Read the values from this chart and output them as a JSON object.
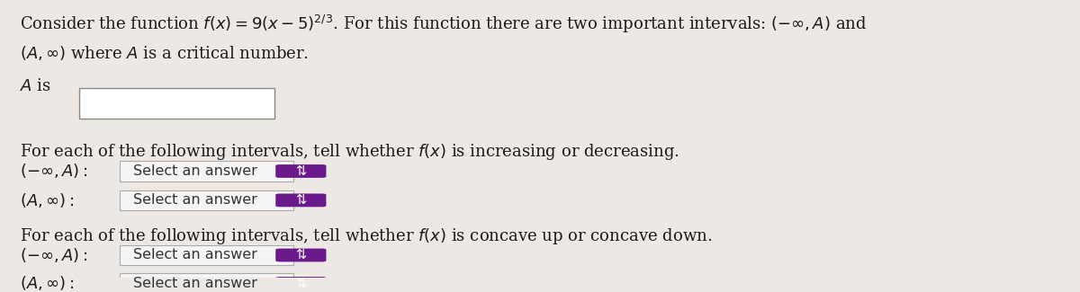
{
  "background_color": "#ede8e3",
  "text_color": "#1a1a1a",
  "line1": "Consider the function $f(x) = 9(x - 5)^{2/3}$. For this function there are two important intervals: $(-\\infty, A)$ and",
  "line2": "$(A, \\infty)$ where $A$ is a critical number.",
  "a_is_label": "$A$ is",
  "increasing_label": "For each of the following intervals, tell whether $f(x)$ is increasing or decreasing.",
  "inc_interval1": "$(-\\infty, A):$",
  "inc_interval2": "$(A, \\infty):$",
  "concave_label": "For each of the following intervals, tell whether $f(x)$ is concave up or concave down.",
  "conc_interval1": "$(-\\infty, A):$",
  "conc_interval2": "$(A, \\infty):$",
  "select_text": "Select an answer",
  "dropdown_bg": "#f5f5f5",
  "dropdown_border": "#aaaaaa",
  "dropdown_text_color": "#333333",
  "dropdown_icon_color": "#6a1a8a",
  "dropdown_icon_text": "#ffffff",
  "font_size_main": 13.0,
  "font_size_select": 11.5
}
